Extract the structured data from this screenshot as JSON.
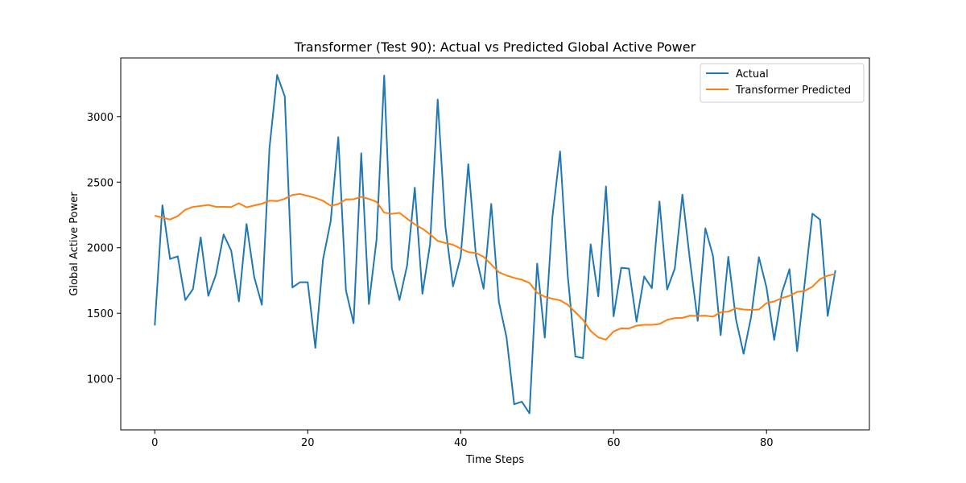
{
  "chart_data": {
    "type": "line",
    "title": "Transformer (Test 90): Actual vs Predicted Global Active Power",
    "xlabel": "Time Steps",
    "ylabel": "Global Active Power",
    "xlim": [
      -4.45,
      93.45
    ],
    "ylim": [
      611,
      3447
    ],
    "xticks": [
      0,
      20,
      40,
      60,
      80
    ],
    "yticks": [
      1000,
      1500,
      2000,
      2500,
      3000
    ],
    "grid": false,
    "legend_position": "top-right",
    "series": [
      {
        "name": "Actual",
        "color": "#1f77b4",
        "values": [
          1407,
          2324,
          1914,
          1934,
          1601,
          1686,
          2079,
          1633,
          1795,
          2101,
          1977,
          1590,
          2181,
          1777,
          1565,
          2761,
          3317,
          3154,
          1697,
          1737,
          1737,
          1236,
          1910,
          2201,
          2843,
          1675,
          1424,
          2720,
          1571,
          2061,
          3313,
          1843,
          1601,
          1866,
          2458,
          1649,
          2027,
          3130,
          2163,
          1705,
          1931,
          2637,
          1938,
          1687,
          2334,
          1586,
          1316,
          806,
          826,
          737,
          1879,
          1314,
          2235,
          2734,
          1788,
          1171,
          1158,
          2026,
          1629,
          2467,
          1477,
          1847,
          1841,
          1436,
          1781,
          1692,
          2353,
          1681,
          1841,
          2405,
          1895,
          1442,
          2148,
          1937,
          1333,
          1931,
          1454,
          1191,
          1478,
          1928,
          1695,
          1297,
          1656,
          1836,
          1211,
          1736,
          2260,
          2214,
          1480,
          1828
        ]
      },
      {
        "name": "Transformer Predicted",
        "color": "#ff7f0e",
        "values": [
          2244,
          2230,
          2215,
          2241,
          2290,
          2311,
          2318,
          2326,
          2312,
          2311,
          2310,
          2339,
          2308,
          2322,
          2335,
          2359,
          2355,
          2374,
          2402,
          2410,
          2395,
          2380,
          2358,
          2320,
          2333,
          2368,
          2370,
          2388,
          2372,
          2350,
          2268,
          2258,
          2266,
          2221,
          2178,
          2145,
          2102,
          2052,
          2036,
          2023,
          1993,
          1966,
          1960,
          1931,
          1872,
          1813,
          1788,
          1770,
          1756,
          1731,
          1657,
          1626,
          1611,
          1599,
          1565,
          1508,
          1450,
          1365,
          1316,
          1299,
          1362,
          1385,
          1384,
          1406,
          1412,
          1412,
          1418,
          1450,
          1463,
          1465,
          1482,
          1480,
          1482,
          1474,
          1508,
          1513,
          1538,
          1529,
          1526,
          1529,
          1578,
          1590,
          1616,
          1633,
          1663,
          1671,
          1703,
          1761,
          1787,
          1800
        ]
      }
    ]
  }
}
